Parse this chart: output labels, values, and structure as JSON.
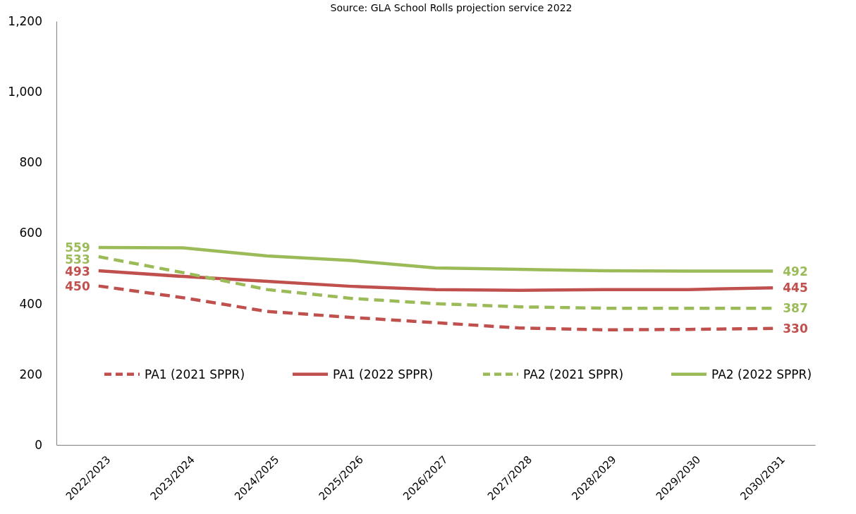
{
  "chart_data": {
    "type": "line",
    "annotations": [
      "Source: GLA School Rolls projection service 2022"
    ],
    "categories": [
      "2022/2023",
      "2023/2024",
      "2024/2025",
      "2025/2026",
      "2026/2027",
      "2027/2028",
      "2028/2029",
      "2029/2030",
      "2030/2031"
    ],
    "ylim": [
      0,
      1200
    ],
    "yticks": [
      0,
      {
        "value": 200,
        "label": "200"
      },
      {
        "value": 400,
        "label": "400"
      },
      {
        "value": 600,
        "label": "600"
      },
      {
        "value": 800,
        "label": "800"
      },
      {
        "value": 1000,
        "label": "1,000"
      },
      {
        "value": 1200,
        "label": "1,200"
      }
    ],
    "grid": false,
    "legend": "bottom",
    "marker": "none",
    "series": [
      {
        "name": "PA1 (2021 SPPR)",
        "color": "#c0504d",
        "line_style": "dashed",
        "values": [
          450,
          417,
          378,
          361,
          346,
          331,
          326,
          327,
          330
        ],
        "value_labels": [
          "450",
          null,
          null,
          null,
          null,
          null,
          null,
          null,
          "330"
        ]
      },
      {
        "name": "PA1 (2022 SPPR)",
        "color": "#c0504d",
        "line_style": "solid",
        "values": [
          493,
          477,
          463,
          449,
          440,
          438,
          440,
          440,
          445
        ],
        "value_labels": [
          "493",
          null,
          null,
          null,
          null,
          null,
          null,
          null,
          "445"
        ]
      },
      {
        "name": "PA2 (2021 SPPR)",
        "color": "#9bbb59",
        "line_style": "dashed",
        "values": [
          533,
          488,
          440,
          415,
          400,
          391,
          387,
          387,
          387
        ],
        "value_labels": [
          "533",
          null,
          null,
          null,
          null,
          null,
          null,
          null,
          "387"
        ]
      },
      {
        "name": "PA2 (2022 SPPR)",
        "color": "#9bbb59",
        "line_style": "solid",
        "values": [
          559,
          558,
          535,
          522,
          501,
          497,
          493,
          492,
          492
        ],
        "value_labels": [
          "559",
          null,
          null,
          null,
          null,
          null,
          null,
          null,
          "492"
        ]
      }
    ]
  }
}
